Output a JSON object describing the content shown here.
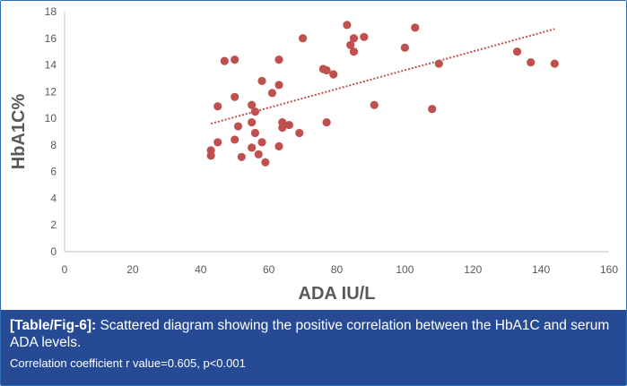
{
  "chart_data": {
    "type": "scatter",
    "xlabel": "ADA IU/L",
    "ylabel": "HbA1C%",
    "xlim": [
      0,
      160
    ],
    "ylim": [
      0,
      18
    ],
    "x_ticks": [
      0,
      20,
      40,
      60,
      80,
      100,
      120,
      140,
      160
    ],
    "y_ticks": [
      0,
      2,
      4,
      6,
      8,
      10,
      12,
      14,
      16,
      18
    ],
    "grid": false,
    "marker_color": "#c0504d",
    "trendline": {
      "style": "dotted",
      "color": "#c0504d",
      "x": [
        43,
        144
      ],
      "y": [
        9.6,
        16.7
      ]
    },
    "points": [
      {
        "x": 43,
        "y": 7.2
      },
      {
        "x": 43,
        "y": 7.6
      },
      {
        "x": 45,
        "y": 8.2
      },
      {
        "x": 45,
        "y": 10.9
      },
      {
        "x": 47,
        "y": 14.3
      },
      {
        "x": 50,
        "y": 14.4
      },
      {
        "x": 50,
        "y": 11.6
      },
      {
        "x": 50,
        "y": 8.4
      },
      {
        "x": 51,
        "y": 9.4
      },
      {
        "x": 52,
        "y": 7.1
      },
      {
        "x": 55,
        "y": 7.8
      },
      {
        "x": 55,
        "y": 11.0
      },
      {
        "x": 55,
        "y": 9.7
      },
      {
        "x": 56,
        "y": 10.5
      },
      {
        "x": 56,
        "y": 8.9
      },
      {
        "x": 57,
        "y": 7.3
      },
      {
        "x": 58,
        "y": 12.8
      },
      {
        "x": 58,
        "y": 8.2
      },
      {
        "x": 59,
        "y": 6.7
      },
      {
        "x": 61,
        "y": 11.9
      },
      {
        "x": 63,
        "y": 14.4
      },
      {
        "x": 63,
        "y": 7.9
      },
      {
        "x": 63,
        "y": 12.5
      },
      {
        "x": 64,
        "y": 9.7
      },
      {
        "x": 64,
        "y": 9.3
      },
      {
        "x": 66,
        "y": 9.5
      },
      {
        "x": 69,
        "y": 8.9
      },
      {
        "x": 70,
        "y": 16.0
      },
      {
        "x": 76,
        "y": 13.7
      },
      {
        "x": 77,
        "y": 13.6
      },
      {
        "x": 77,
        "y": 9.7
      },
      {
        "x": 79,
        "y": 13.3
      },
      {
        "x": 83,
        "y": 17.0
      },
      {
        "x": 84,
        "y": 15.5
      },
      {
        "x": 85,
        "y": 16.0
      },
      {
        "x": 85,
        "y": 15.0
      },
      {
        "x": 88,
        "y": 16.1
      },
      {
        "x": 91,
        "y": 11.0
      },
      {
        "x": 100,
        "y": 15.3
      },
      {
        "x": 103,
        "y": 16.8
      },
      {
        "x": 108,
        "y": 10.7
      },
      {
        "x": 110,
        "y": 14.1
      },
      {
        "x": 133,
        "y": 15.0
      },
      {
        "x": 137,
        "y": 14.2
      },
      {
        "x": 144,
        "y": 14.1
      }
    ]
  },
  "caption": {
    "tag": "[Table/Fig-6]:",
    "text": " Scattered diagram showing the positive correlation between the HbA1C and serum ADA levels.",
    "sub": "Correlation coefficient r value=0.605, p<0.001"
  }
}
